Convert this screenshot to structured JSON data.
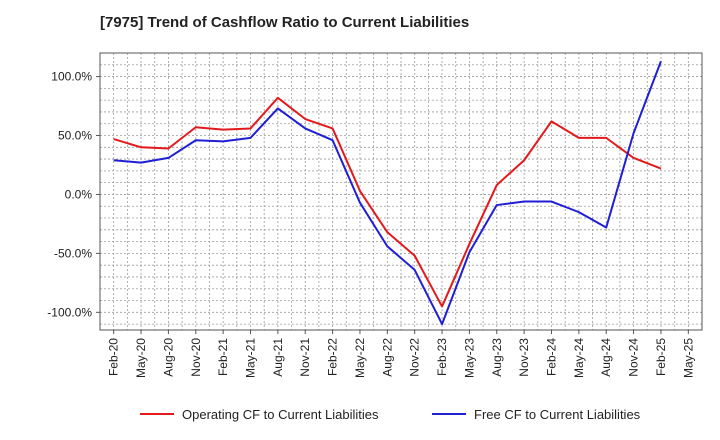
{
  "chart_data": {
    "type": "line",
    "title": "[7975]  Trend of Cashflow Ratio to Current Liabilities",
    "x": [
      "Feb-20",
      "May-20",
      "Aug-20",
      "Nov-20",
      "Feb-21",
      "May-21",
      "Aug-21",
      "Nov-21",
      "Feb-22",
      "May-22",
      "Aug-22",
      "Nov-22",
      "Feb-23",
      "May-23",
      "Aug-23",
      "Nov-23",
      "Feb-24",
      "May-24",
      "Aug-24",
      "Nov-24",
      "Feb-25",
      "May-25"
    ],
    "x_tick_labels": [
      "Feb-20",
      "May-20",
      "Aug-20",
      "Nov-20",
      "Feb-21",
      "May-21",
      "Aug-21",
      "Nov-21",
      "Feb-22",
      "May-22",
      "Aug-22",
      "Nov-22",
      "Feb-23",
      "May-23",
      "Aug-23",
      "Nov-23",
      "Feb-24",
      "May-24",
      "Aug-24",
      "Nov-24",
      "Feb-25",
      "May-25"
    ],
    "y_tick_values": [
      100,
      50,
      0,
      -50,
      -100
    ],
    "y_tick_labels": [
      "100.0%",
      "50.0%",
      "0.0%",
      "-50.0%",
      "-100.0%"
    ],
    "ylim": [
      -115,
      120
    ],
    "grid": true,
    "legend_position": "bottom",
    "series": [
      {
        "name": "Operating CF to Current Liabilities",
        "color": "#e31a1c",
        "values": [
          47,
          40,
          39,
          57,
          55,
          56,
          82,
          64,
          56,
          3,
          -32,
          -52,
          -95,
          -42,
          8,
          29,
          62,
          48,
          48,
          31,
          22,
          null
        ]
      },
      {
        "name": "Free CF to Current Liabilities",
        "color": "#1f1fd6",
        "values": [
          29,
          27,
          31,
          46,
          45,
          48,
          73,
          56,
          46,
          -7,
          -44,
          -64,
          -110,
          -49,
          -9,
          -6,
          -6,
          -15,
          -28,
          52,
          113,
          null
        ]
      }
    ]
  }
}
